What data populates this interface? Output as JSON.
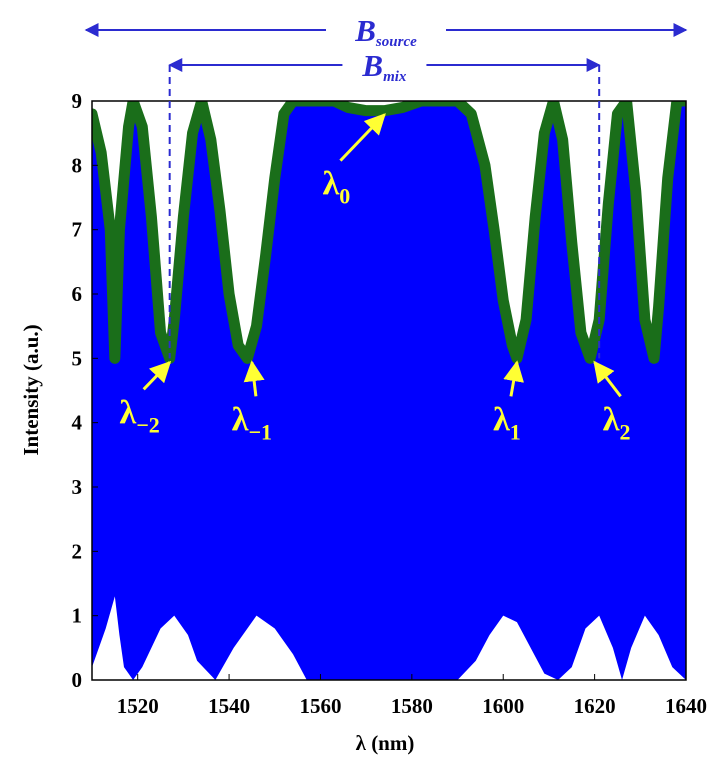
{
  "chart_data": {
    "type": "line",
    "xlabel": "λ (nm)",
    "ylabel": "Intensity (a.u.)",
    "xlim": [
      1510,
      1640
    ],
    "ylim": [
      0,
      9
    ],
    "xticks": [
      1520,
      1540,
      1560,
      1580,
      1600,
      1620,
      1640
    ],
    "yticks": [
      0,
      1,
      2,
      3,
      4,
      5,
      6,
      7,
      8,
      9
    ],
    "colors": {
      "fill": "#0000ff",
      "envelope": "#1a6e1a",
      "annotation": "#ffff33",
      "bandwidth": "#2b2bd0"
    },
    "envelope": {
      "x": [
        1510,
        1512,
        1514,
        1515,
        1516,
        1518,
        1519,
        1521,
        1523,
        1525,
        1527,
        1528,
        1530,
        1532,
        1534,
        1536,
        1538,
        1540,
        1542,
        1544,
        1546,
        1548,
        1550,
        1552,
        1554,
        1556,
        1558,
        1560,
        1563,
        1566,
        1570,
        1574,
        1578,
        1582,
        1586,
        1590,
        1593,
        1596,
        1598,
        1600,
        1602,
        1603,
        1605,
        1607,
        1609,
        1611,
        1613,
        1615,
        1617,
        1619,
        1621,
        1623,
        1625,
        1627,
        1629,
        1631,
        1633,
        1634,
        1636,
        1638,
        1640
      ],
      "y": [
        8.8,
        8.2,
        7.0,
        5.0,
        7.0,
        8.6,
        9.0,
        8.6,
        7.2,
        5.4,
        5.0,
        5.6,
        7.2,
        8.5,
        9.0,
        8.4,
        7.3,
        6.0,
        5.2,
        5.0,
        5.5,
        6.6,
        7.8,
        8.8,
        9.0,
        9.0,
        9.0,
        9.0,
        9.0,
        8.9,
        8.85,
        8.85,
        8.9,
        9.0,
        9.0,
        9.0,
        8.8,
        8.0,
        7.0,
        5.9,
        5.2,
        5.0,
        5.6,
        7.2,
        8.5,
        9.0,
        8.4,
        6.8,
        5.4,
        5.0,
        5.6,
        7.4,
        8.8,
        9.0,
        7.6,
        5.6,
        5.0,
        5.8,
        7.8,
        9.0,
        9.0
      ]
    },
    "lower_envelope": {
      "x": [
        1510,
        1513,
        1515,
        1516,
        1517,
        1519,
        1521,
        1525,
        1528,
        1531,
        1533,
        1537,
        1541,
        1546,
        1550,
        1554,
        1557,
        1560,
        1590,
        1594,
        1597,
        1600,
        1603,
        1606,
        1609,
        1612,
        1615,
        1618,
        1621,
        1624,
        1626,
        1628,
        1631,
        1634,
        1637,
        1640
      ],
      "y": [
        0.2,
        0.8,
        1.3,
        0.7,
        0.2,
        0,
        0.2,
        0.8,
        1.0,
        0.7,
        0.3,
        0,
        0.5,
        1.0,
        0.8,
        0.4,
        0,
        0,
        0,
        0.3,
        0.7,
        1.0,
        0.9,
        0.5,
        0.1,
        0,
        0.2,
        0.8,
        1.0,
        0.5,
        0,
        0.5,
        1.0,
        0.7,
        0.2,
        0
      ]
    },
    "annotations": [
      {
        "text": "λ",
        "sub": "0",
        "x": 1574,
        "y": 8.85
      },
      {
        "text": "λ",
        "sub": "−2",
        "x": 1527,
        "y": 5.0
      },
      {
        "text": "λ",
        "sub": "−1",
        "x": 1545,
        "y": 5.0
      },
      {
        "text": "λ",
        "sub": "1",
        "x": 1603,
        "y": 5.0
      },
      {
        "text": "λ",
        "sub": "2",
        "x": 1620,
        "y": 5.0
      }
    ],
    "bandwidths": [
      {
        "label": "B",
        "sub": "source",
        "x0": 1496,
        "x1": 1640
      },
      {
        "label": "B",
        "sub": "mix",
        "x0": 1527,
        "x1": 1621
      }
    ]
  }
}
